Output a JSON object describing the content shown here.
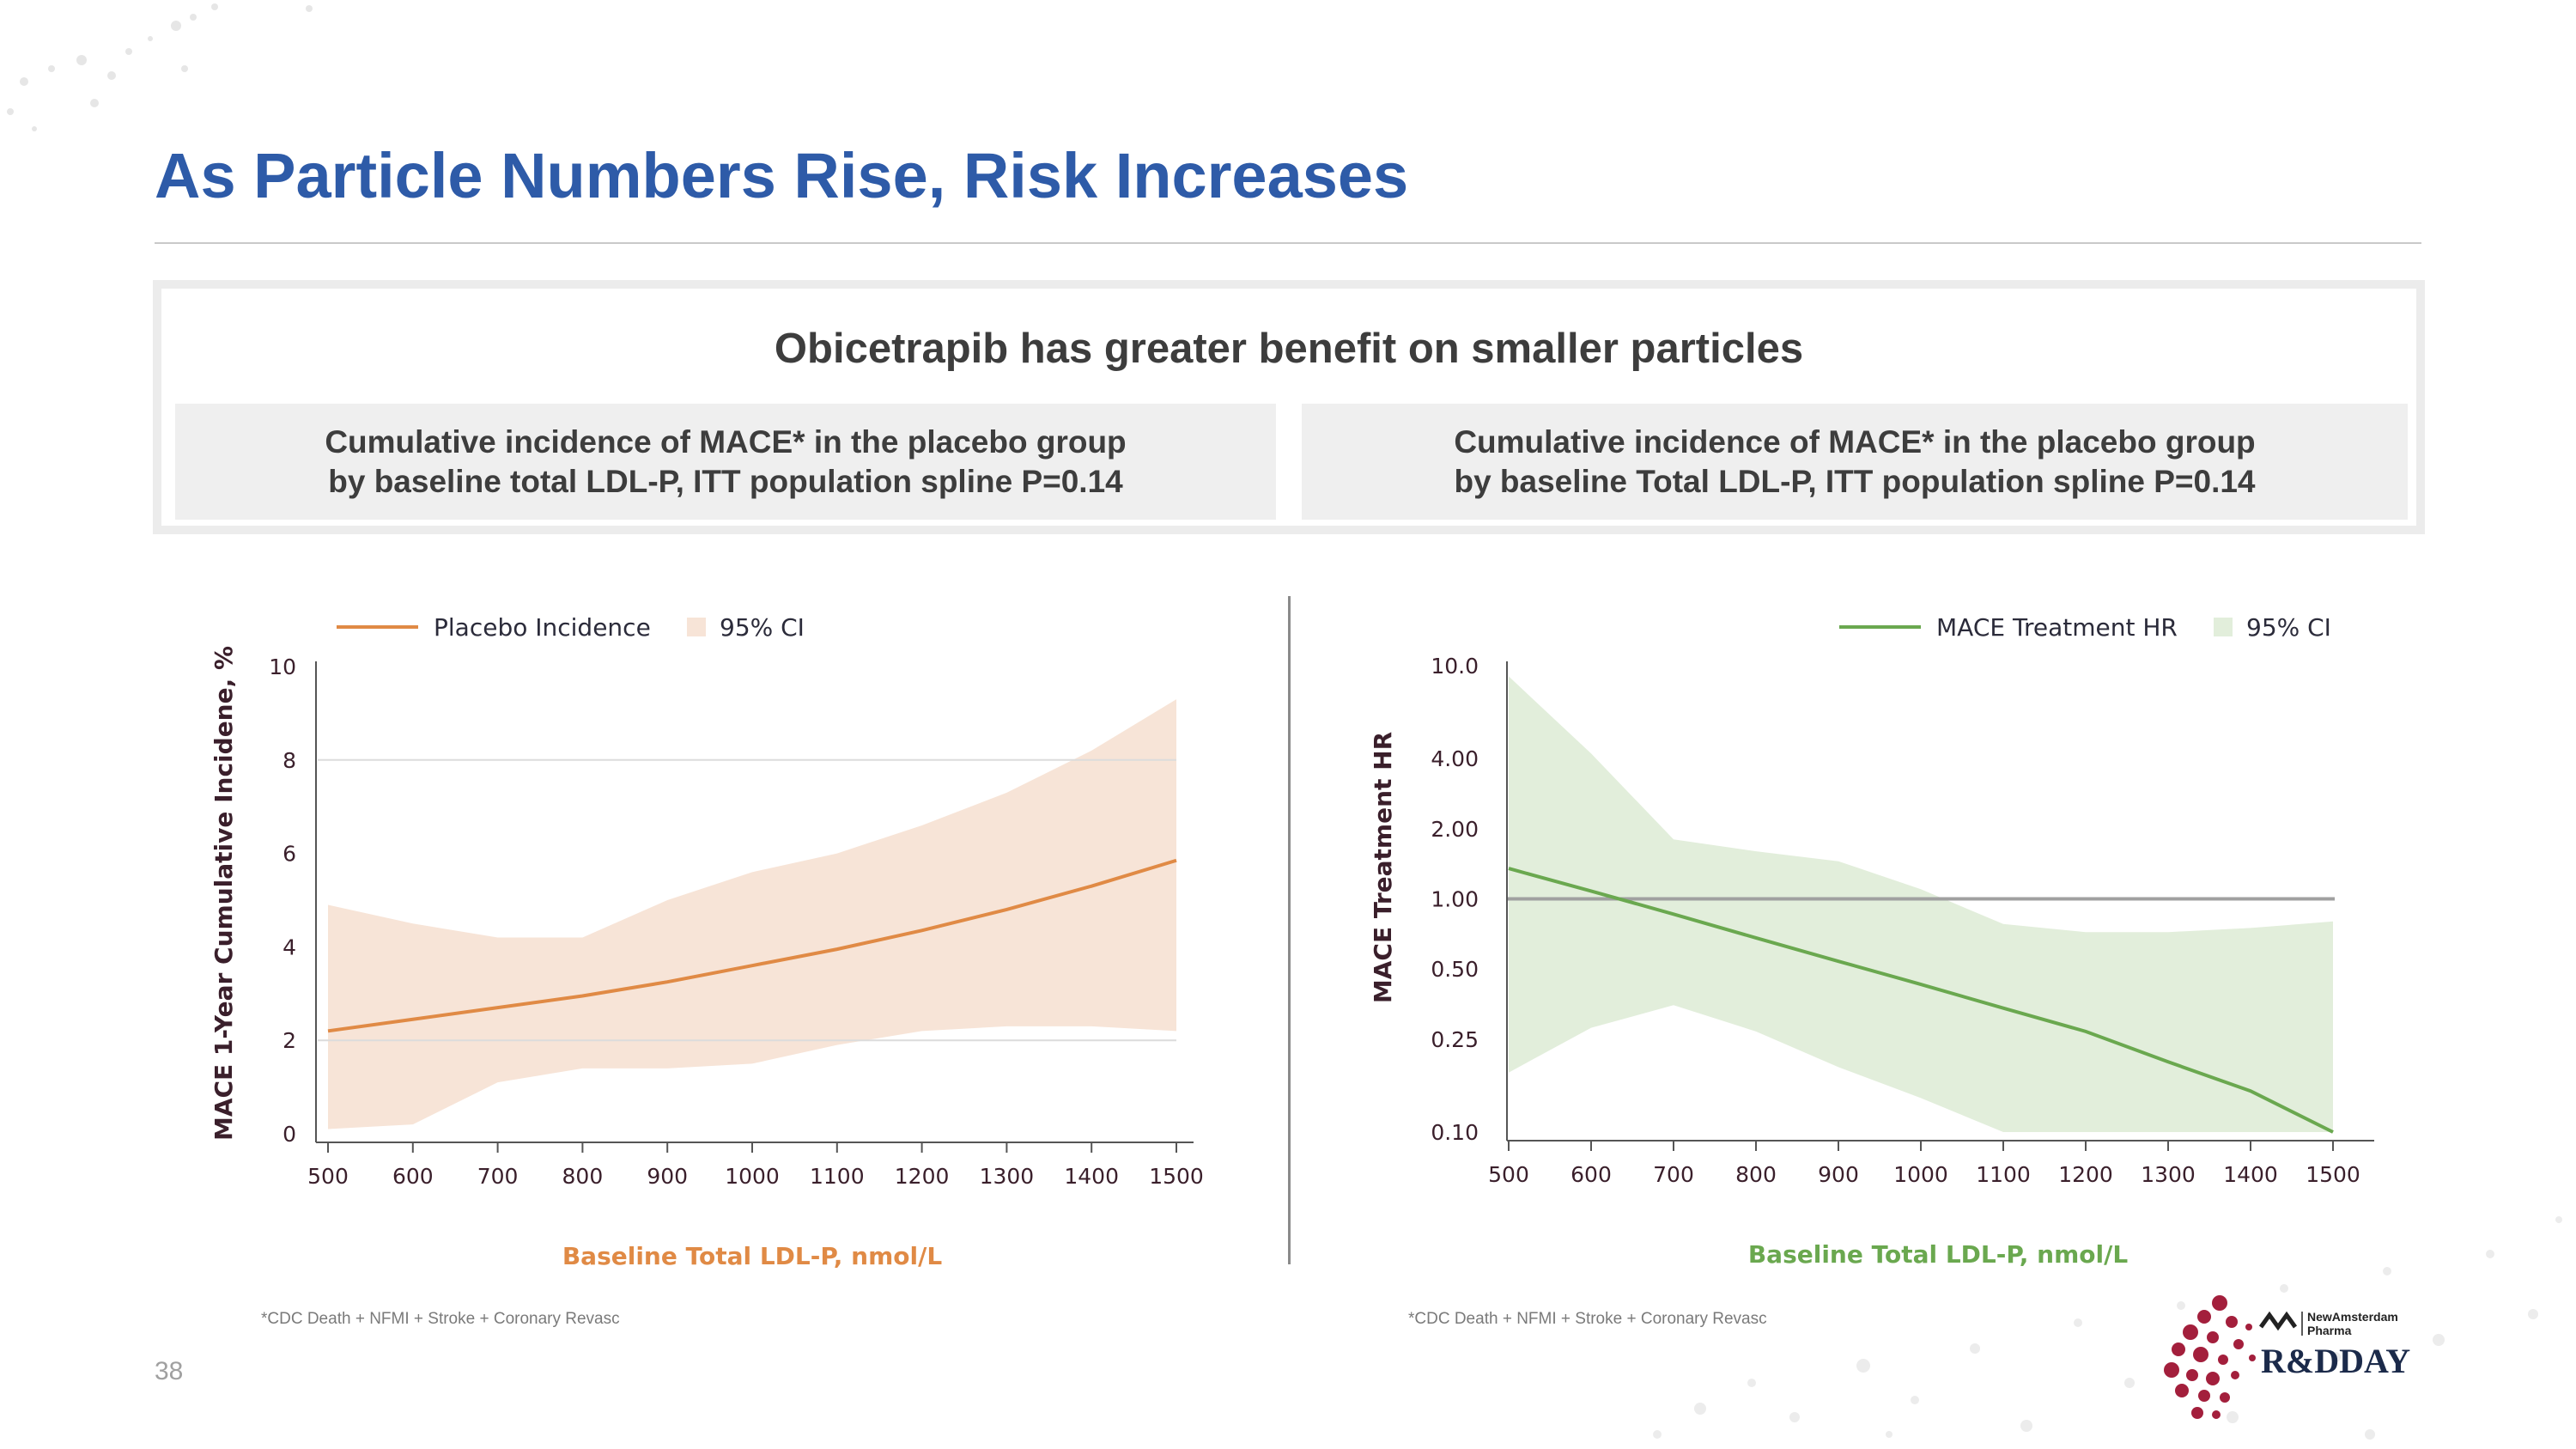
{
  "slide": {
    "title": "As Particle Numbers Rise, Risk Increases",
    "panel_heading": "Obicetrapib has greater benefit on smaller particles",
    "page_number": "38"
  },
  "colors": {
    "title": "#2e5ba8",
    "placebo_line": "#e08a45",
    "placebo_ci": "#f7e4d7",
    "hr_line": "#6aa84f",
    "hr_ci": "#e2eedb",
    "axis_label_orange": "#e08a45",
    "axis_label_green": "#6aa84f",
    "tick_text": "#3a1f2b",
    "reference_line": "#a0a0a0"
  },
  "left_panel": {
    "subtitle_line1": "Cumulative incidence of MACE* in the placebo group",
    "subtitle_line2": "by baseline total LDL-P, ITT population spline P=0.14",
    "footnote": "*CDC Death + NFMI + Stroke + Coronary Revasc"
  },
  "right_panel": {
    "subtitle_line1": "Cumulative incidence of MACE* in the placebo group",
    "subtitle_line2": "by baseline Total LDL-P, ITT population spline P=0.14",
    "footnote": "*CDC Death + NFMI + Stroke + Coronary Revasc"
  },
  "logo": {
    "company_line1": "NewAmsterdam",
    "company_line2": "Pharma",
    "event": "R&DDAY"
  },
  "chart_data": [
    {
      "type": "line",
      "legend": [
        "Placebo Incidence",
        "95% CI"
      ],
      "legend_placement": "top-left",
      "xlabel": "Baseline Total LDL-P, nmol/L",
      "ylabel": "MACE 1-Year Cumulative Incidene, %",
      "xlim": [
        500,
        1500
      ],
      "ylim": [
        0,
        10
      ],
      "x_ticks": [
        500,
        600,
        700,
        800,
        900,
        1000,
        1100,
        1200,
        1300,
        1400,
        1500
      ],
      "y_ticks": [
        0,
        2,
        4,
        6,
        8,
        10
      ],
      "gridlines_y": [
        2,
        8
      ],
      "series": [
        {
          "name": "Placebo Incidence",
          "x": [
            500,
            600,
            700,
            800,
            900,
            1000,
            1100,
            1200,
            1300,
            1400,
            1500
          ],
          "y": [
            2.2,
            2.45,
            2.7,
            2.95,
            3.25,
            3.6,
            3.95,
            4.35,
            4.8,
            5.3,
            5.85
          ],
          "ci_lower": [
            0.1,
            0.2,
            1.1,
            1.4,
            1.4,
            1.5,
            1.9,
            2.2,
            2.3,
            2.3,
            2.2
          ],
          "ci_upper": [
            4.9,
            4.5,
            4.2,
            4.2,
            5.0,
            5.6,
            6.0,
            6.6,
            7.3,
            8.2,
            9.3
          ]
        }
      ]
    },
    {
      "type": "line",
      "legend": [
        "MACE Treatment HR",
        "95% CI"
      ],
      "legend_placement": "top-right",
      "xlabel": "Baseline Total LDL-P, nmol/L",
      "ylabel": "MACE  Treatment HR",
      "y_scale": "log",
      "xlim": [
        500,
        1500
      ],
      "ylim": [
        0.1,
        10.0
      ],
      "x_ticks": [
        500,
        600,
        700,
        800,
        900,
        1000,
        1100,
        1200,
        1300,
        1400,
        1500
      ],
      "y_ticks": [
        0.1,
        0.25,
        0.5,
        1.0,
        2.0,
        4.0,
        10.0
      ],
      "y_tick_labels": [
        "0.10",
        "0.25",
        "0.50",
        "1.00",
        "2.00",
        "4.00",
        "10.0"
      ],
      "reference_line": 1.0,
      "series": [
        {
          "name": "MACE Treatment HR",
          "x": [
            500,
            600,
            700,
            800,
            900,
            1000,
            1100,
            1200,
            1300,
            1400,
            1500
          ],
          "y": [
            1.35,
            1.08,
            0.86,
            0.68,
            0.54,
            0.43,
            0.34,
            0.27,
            0.2,
            0.15,
            0.1
          ],
          "ci_lower": [
            0.18,
            0.28,
            0.35,
            0.27,
            0.19,
            0.14,
            0.1,
            0.1,
            0.1,
            0.1,
            0.1
          ],
          "ci_upper": [
            9.0,
            4.2,
            1.8,
            1.6,
            1.45,
            1.1,
            0.78,
            0.72,
            0.72,
            0.75,
            0.8
          ]
        }
      ]
    }
  ]
}
